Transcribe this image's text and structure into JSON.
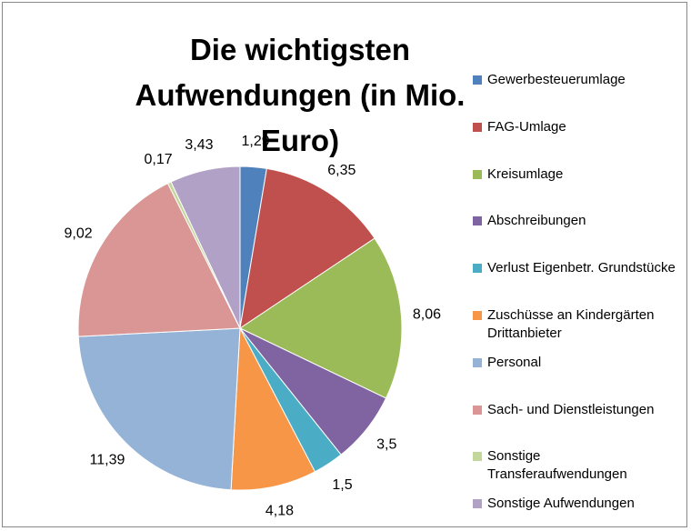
{
  "chart_data": {
    "type": "pie",
    "title": "Die wichtigsten Aufwendungen (in Mio. Euro)",
    "categories": [
      "Gewerbesteuerumlage",
      "FAG-Umlage",
      "Kreisumlage",
      "Abschreibungen",
      "Verlust Eigenbetr. Grundstücke",
      "Zuschüsse an Kindergärten Drittanbieter",
      "Personal",
      "Sach- und Dienstleistungen",
      "Sonstige Transferaufwendungen",
      "Sonstige Aufwendungen"
    ],
    "values": [
      1.29,
      6.35,
      8.06,
      3.5,
      1.5,
      4.18,
      11.39,
      9.02,
      0.17,
      3.43
    ],
    "value_labels": [
      "1,29",
      "6,35",
      "8,06",
      "3,5",
      "1,5",
      "4,18",
      "11,39",
      "9,02",
      "0,17",
      "3,43"
    ],
    "colors": [
      "#4f81bd",
      "#c0504d",
      "#9bbb59",
      "#8064a2",
      "#4bacc6",
      "#f79646",
      "#95b3d7",
      "#d99694",
      "#c3d69b",
      "#b2a1c7"
    ],
    "legend": "right"
  }
}
